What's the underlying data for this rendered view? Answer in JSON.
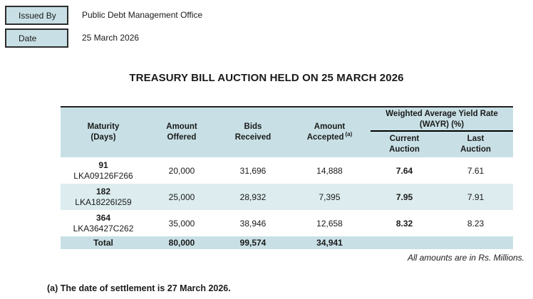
{
  "issued_by": {
    "label": "Issued By",
    "value": "Public Debt Management Office"
  },
  "date": {
    "label": "Date",
    "value": "25 March 2026"
  },
  "title": "TREASURY BILL AUCTION HELD ON 25 MARCH 2026",
  "table": {
    "headers": {
      "maturity_1": "Maturity",
      "maturity_2": "(Days)",
      "offered_1": "Amount",
      "offered_2": "Offered",
      "bids_1": "Bids",
      "bids_2": "Received",
      "accepted_1": "Amount",
      "accepted_2": "Accepted",
      "accepted_sup": "(a)",
      "wayr_1": "Weighted Average Yield Rate",
      "wayr_2": "(WAYR) (%)",
      "current_1": "Current",
      "current_2": "Auction",
      "last_1": "Last",
      "last_2": "Auction"
    },
    "rows": [
      {
        "days": "91",
        "isin": "LKA09126F266",
        "offered": "20,000",
        "bids": "31,696",
        "accepted": "14,888",
        "wayr_current": "7.64",
        "wayr_last": "7.61"
      },
      {
        "days": "182",
        "isin": "LKA18226I259",
        "offered": "25,000",
        "bids": "28,932",
        "accepted": "7,395",
        "wayr_current": "7.95",
        "wayr_last": "7.91"
      },
      {
        "days": "364",
        "isin": "LKA36427C262",
        "offered": "35,000",
        "bids": "38,946",
        "accepted": "12,658",
        "wayr_current": "8.32",
        "wayr_last": "8.23"
      }
    ],
    "total": {
      "label": "Total",
      "offered": "80,000",
      "bids": "99,574",
      "accepted": "34,941"
    },
    "note": "All amounts are in Rs. Millions."
  },
  "footnote": "(a) The date of settlement is 27 March 2026.",
  "colors": {
    "band": "#c8e0e5",
    "band_light": "#dcecef"
  }
}
